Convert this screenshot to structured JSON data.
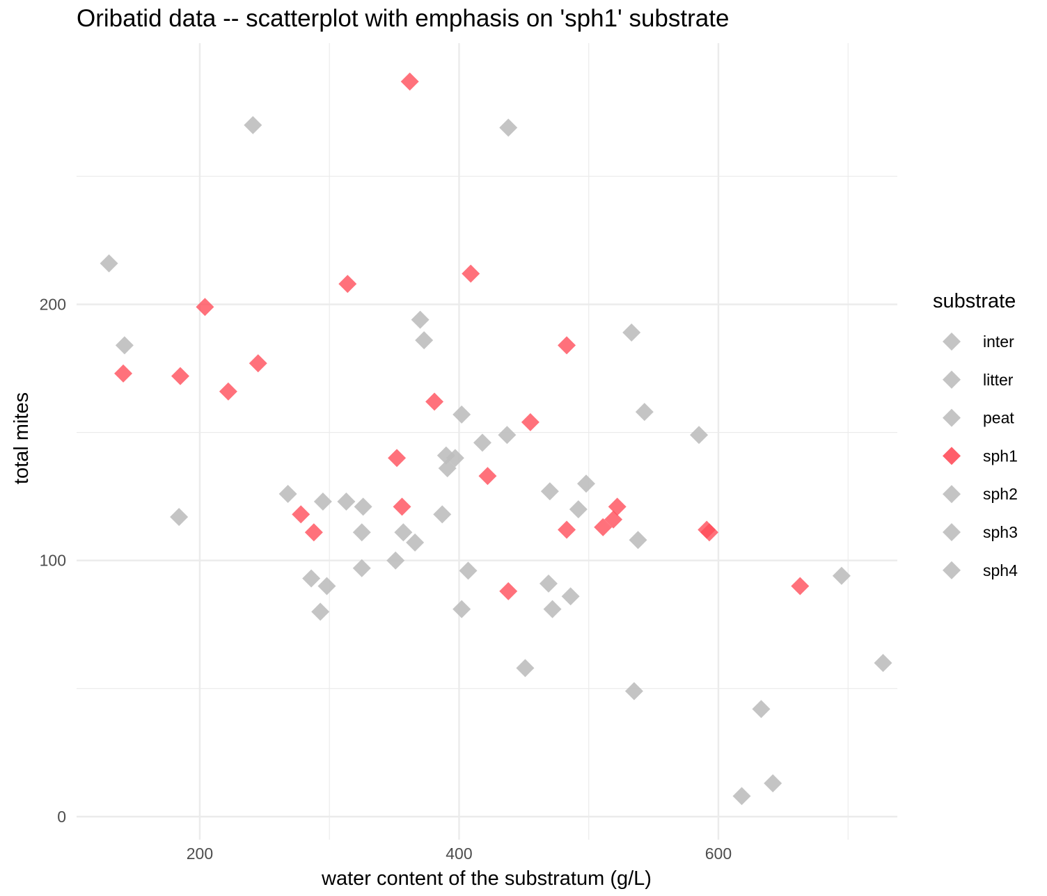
{
  "chart_data": {
    "type": "scatter",
    "title": "Oribatid data -- scatterplot with emphasis on 'sph1' substrate",
    "xlabel": "water content of the substratum (g/L)",
    "ylabel": "total mites",
    "xlim": [
      105,
      738
    ],
    "ylim": [
      -9,
      302
    ],
    "x_ticks": [
      200,
      400,
      600
    ],
    "x_tick_labels": [
      "200",
      "400",
      "600"
    ],
    "x_minor": [
      300,
      500,
      700
    ],
    "y_ticks": [
      0,
      100,
      200
    ],
    "y_tick_labels": [
      "0",
      "100",
      "200"
    ],
    "y_minor": [
      50,
      150,
      250
    ],
    "grid": true,
    "marker": "diamond",
    "legend": {
      "title": "substrate",
      "position": "right",
      "entries": [
        {
          "label": "inter",
          "color": "#bebebe"
        },
        {
          "label": "litter",
          "color": "#bebebe"
        },
        {
          "label": "peat",
          "color": "#bebebe"
        },
        {
          "label": "sph1",
          "color": "#ff4d5a"
        },
        {
          "label": "sph2",
          "color": "#bebebe"
        },
        {
          "label": "sph3",
          "color": "#bebebe"
        },
        {
          "label": "sph4",
          "color": "#bebebe"
        }
      ]
    },
    "colors": {
      "highlight": "#ff4d5a",
      "other": "#bebebe"
    },
    "series": [
      {
        "name": "sph1",
        "points": [
          [
            362,
            287
          ],
          [
            409,
            212
          ],
          [
            314,
            208
          ],
          [
            204,
            199
          ],
          [
            483,
            184
          ],
          [
            245,
            177
          ],
          [
            141,
            173
          ],
          [
            185,
            172
          ],
          [
            222,
            166
          ],
          [
            381,
            162
          ],
          [
            455,
            154
          ],
          [
            352,
            140
          ],
          [
            422,
            133
          ],
          [
            522,
            121
          ],
          [
            356,
            121
          ],
          [
            278,
            118
          ],
          [
            519,
            116
          ],
          [
            511,
            113
          ],
          [
            483,
            112
          ],
          [
            591,
            112
          ],
          [
            593,
            111
          ],
          [
            288,
            111
          ],
          [
            438,
            88
          ],
          [
            663,
            90
          ]
        ]
      },
      {
        "name": "other",
        "points": [
          [
            241,
            270
          ],
          [
            438,
            269
          ],
          [
            130,
            216
          ],
          [
            142,
            184
          ],
          [
            370,
            194
          ],
          [
            373,
            186
          ],
          [
            533,
            189
          ],
          [
            402,
            157
          ],
          [
            543,
            158
          ],
          [
            418,
            146
          ],
          [
            437,
            149
          ],
          [
            585,
            149
          ],
          [
            390,
            141
          ],
          [
            397,
            140
          ],
          [
            391,
            136
          ],
          [
            498,
            130
          ],
          [
            268,
            126
          ],
          [
            470,
            127
          ],
          [
            295,
            123
          ],
          [
            313,
            123
          ],
          [
            326,
            121
          ],
          [
            492,
            120
          ],
          [
            184,
            117
          ],
          [
            387,
            118
          ],
          [
            325,
            111
          ],
          [
            357,
            111
          ],
          [
            366,
            107
          ],
          [
            538,
            108
          ],
          [
            351,
            100
          ],
          [
            325,
            97
          ],
          [
            407,
            96
          ],
          [
            286,
            93
          ],
          [
            298,
            90
          ],
          [
            469,
            91
          ],
          [
            486,
            86
          ],
          [
            293,
            80
          ],
          [
            402,
            81
          ],
          [
            472,
            81
          ],
          [
            451,
            58
          ],
          [
            535,
            49
          ],
          [
            633,
            42
          ],
          [
            695,
            94
          ],
          [
            727,
            60
          ],
          [
            618,
            8
          ],
          [
            642,
            13
          ]
        ]
      }
    ]
  }
}
